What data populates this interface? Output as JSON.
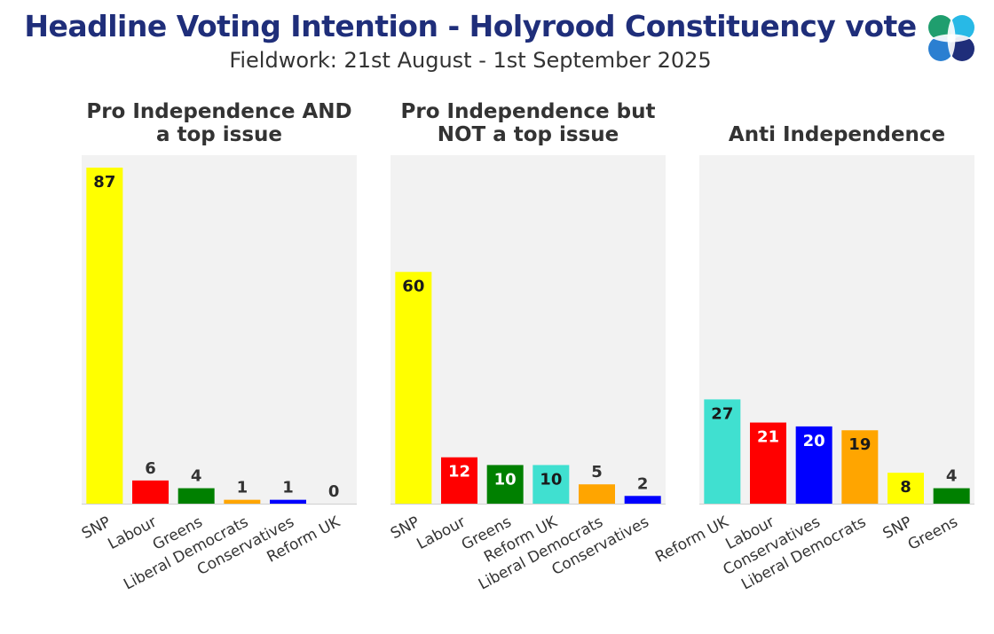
{
  "header": {
    "title": "Headline Voting Intention - Holyrood Constituency vote",
    "subtitle": "Fieldwork: 21st August - 1st September 2025"
  },
  "colors": {
    "SNP": "#ffff00",
    "Labour": "#ff0000",
    "Greens": "#008000",
    "Liberal Democrats": "#ffa500",
    "Conservatives": "#0000ff",
    "Reform UK": "#40e0d0",
    "panel_bg": "#f2f2f2",
    "title_color": "#1f2e7a"
  },
  "chart_data": [
    {
      "type": "bar",
      "title": [
        "Pro Independence AND",
        "a top issue"
      ],
      "categories": [
        "SNP",
        "Labour",
        "Greens",
        "Liberal Democrats",
        "Conservatives",
        "Reform UK"
      ],
      "values": [
        87,
        6,
        4,
        1,
        1,
        0
      ],
      "ylim": [
        0,
        90
      ],
      "grid": false,
      "label_position": [
        "inside",
        "above",
        "above",
        "above",
        "above",
        "above"
      ]
    },
    {
      "type": "bar",
      "title": [
        "Pro Independence but",
        "NOT a top issue"
      ],
      "categories": [
        "SNP",
        "Labour",
        "Greens",
        "Reform UK",
        "Liberal Democrats",
        "Conservatives"
      ],
      "values": [
        60,
        12,
        10,
        10,
        5,
        2
      ],
      "ylim": [
        0,
        90
      ],
      "grid": false,
      "label_position": [
        "inside",
        "inside",
        "inside",
        "inside",
        "above",
        "above"
      ]
    },
    {
      "type": "bar",
      "title": [
        "Anti Independence"
      ],
      "categories": [
        "Reform UK",
        "Labour",
        "Conservatives",
        "Liberal Democrats",
        "SNP",
        "Greens"
      ],
      "values": [
        27,
        21,
        20,
        19,
        8,
        4
      ],
      "ylim": [
        0,
        90
      ],
      "grid": false,
      "label_position": [
        "inside",
        "inside",
        "inside",
        "inside",
        "inside",
        "above"
      ]
    }
  ]
}
